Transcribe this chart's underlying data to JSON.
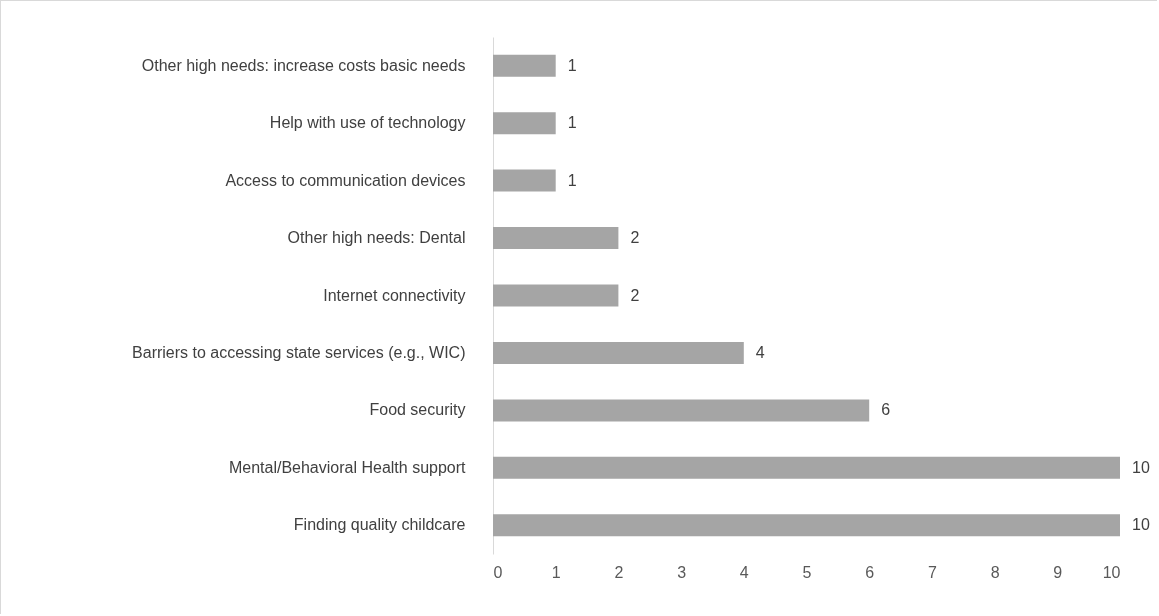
{
  "chart_data": {
    "type": "bar",
    "orientation": "horizontal",
    "categories": [
      "Other high needs: increase costs basic needs",
      "Help with use of technology",
      "Access to communication devices",
      "Other high needs: Dental",
      "Internet connectivity",
      "Barriers to accessing state services (e.g., WIC)",
      "Food security",
      "Mental/Behavioral Health support",
      "Finding quality childcare"
    ],
    "values": [
      1,
      1,
      1,
      2,
      2,
      4,
      6,
      10,
      10
    ],
    "color": "#a5a5a5",
    "xlim": [
      0,
      10
    ],
    "xticks": [
      0,
      1,
      2,
      3,
      4,
      5,
      6,
      7,
      8,
      9,
      10
    ],
    "data_labels": true,
    "grid": false
  }
}
